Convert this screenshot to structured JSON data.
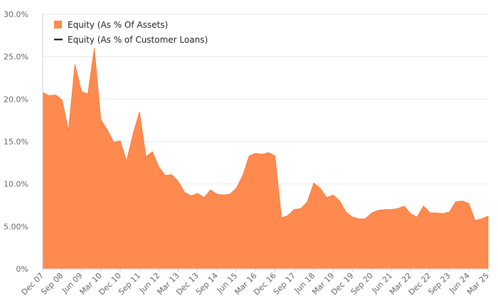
{
  "colors": {
    "area": "#ff8a4f",
    "area_stroke": "#f57333",
    "grid": "#e8e8e8",
    "axis": "#cfcfcf",
    "line_series": "#000000"
  },
  "legend": {
    "items": [
      {
        "label": "Equity (As % Of Assets)",
        "swatch": "square"
      },
      {
        "label": "Equity (As % of Customer Loans)",
        "swatch": "line"
      }
    ]
  },
  "chart_data": {
    "type": "area",
    "title": "",
    "xlabel": "",
    "ylabel": "",
    "ylim": [
      0,
      30
    ],
    "yticks": [
      0,
      5,
      10,
      15,
      20,
      25,
      30
    ],
    "ytick_labels": [
      "0%",
      "5.00%",
      "10.0%",
      "15.0%",
      "20.0%",
      "25.0%",
      "30.0%"
    ],
    "xtick_labels": [
      "Dec 07",
      "Sep 08",
      "Jun 09",
      "Mar 10",
      "Dec 10",
      "Sep 11",
      "Jun 12",
      "Mar 13",
      "Dec 13",
      "Sep 14",
      "Jun 15",
      "Mar 16",
      "Dec 16",
      "Sep 17",
      "Jun 18",
      "Mar 19",
      "Dec 19",
      "Sep 20",
      "Jun 21",
      "Mar 22",
      "Dec 22",
      "Sep 23",
      "Jun 24",
      "Mar 25"
    ],
    "legend_position": "top-left",
    "grid": true,
    "series": [
      {
        "name": "Equity (As % Of Assets)",
        "type": "area",
        "values": [
          20.8,
          20.4,
          20.5,
          19.9,
          16.3,
          24.1,
          20.9,
          20.6,
          26.0,
          17.6,
          16.4,
          14.9,
          15.1,
          12.7,
          15.9,
          18.5,
          13.2,
          13.8,
          12.0,
          11.0,
          11.1,
          10.3,
          9.0,
          8.6,
          8.9,
          8.4,
          9.3,
          8.8,
          8.7,
          8.8,
          9.5,
          11.0,
          13.3,
          13.6,
          13.5,
          13.7,
          13.3,
          6.0,
          6.3,
          7.0,
          7.1,
          7.9,
          10.1,
          9.5,
          8.4,
          8.7,
          8.0,
          6.7,
          6.1,
          5.9,
          5.9,
          6.6,
          6.9,
          7.0,
          7.0,
          7.1,
          7.4,
          6.5,
          6.1,
          7.4,
          6.6,
          6.6,
          6.5,
          6.7,
          7.9,
          8.0,
          7.7,
          5.7,
          5.9,
          6.2
        ]
      },
      {
        "name": "Equity (As % of Customer Loans)",
        "type": "line",
        "values": []
      }
    ]
  }
}
